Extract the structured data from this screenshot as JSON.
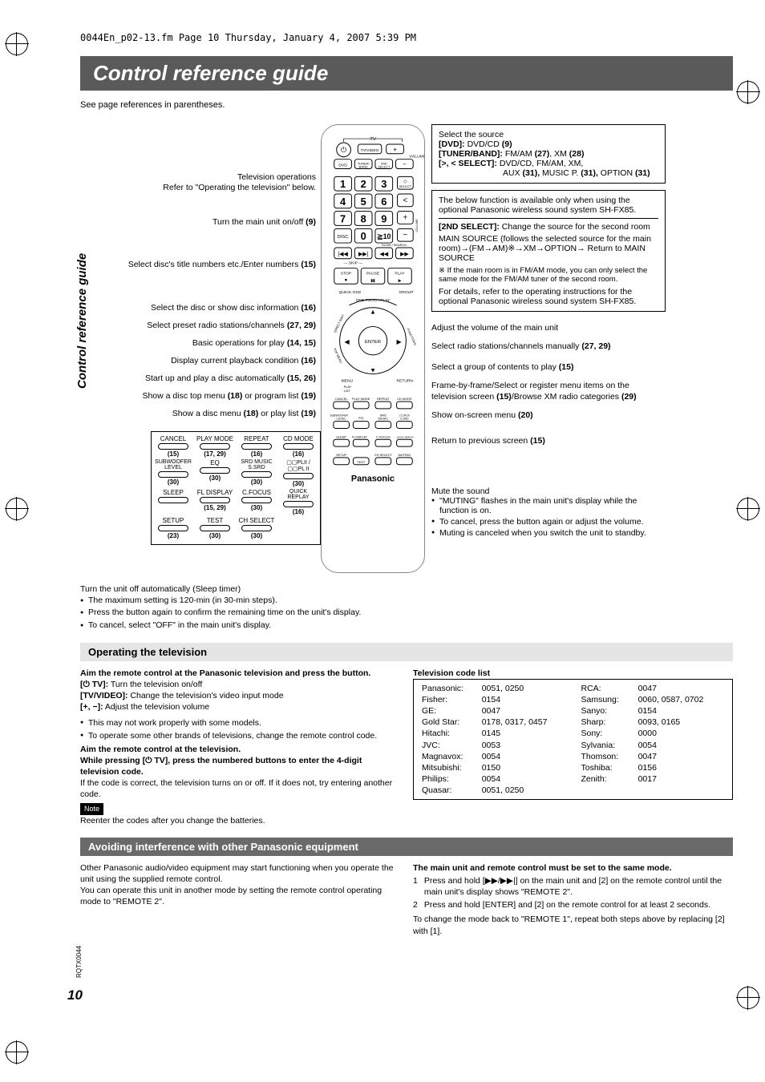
{
  "meta": {
    "header_line": "0044En_p02-13.fm  Page 10  Thursday, January 4, 2007  5:39 PM",
    "side_title": "Control reference guide",
    "doc_id": "RQTX0044",
    "page_number": "10"
  },
  "title": "Control reference guide",
  "intro": "See page references in parentheses.",
  "left_labels": [
    {
      "text": "Television operations\nRefer to \"Operating the television\" below."
    },
    {
      "text": "Turn the main unit on/off ",
      "ref": "(9)"
    },
    {
      "text": "Select disc's title numbers etc./Enter numbers ",
      "ref": "(15)"
    },
    {
      "text": "Select the disc or show disc information ",
      "ref": "(16)"
    },
    {
      "text": "Select preset radio stations/channels ",
      "ref": "(27, 29)"
    },
    {
      "text": "Basic operations for play ",
      "ref": "(14, 15)"
    },
    {
      "text": "Display current playback condition ",
      "ref": "(16)"
    },
    {
      "text": "Start up and play a disc automatically ",
      "ref": "(15, 26)"
    },
    {
      "text": "Show a disc top menu ",
      "ref": "(18)",
      "text2": " or program list ",
      "ref2": "(19)"
    },
    {
      "text": "Show a disc menu ",
      "ref": "(18)",
      "text2": " or play list ",
      "ref2": "(19)"
    }
  ],
  "button_grid": [
    [
      {
        "l": "CANCEL",
        "r": "(15)"
      },
      {
        "l": "PLAY MODE",
        "r": "(17, 29)"
      },
      {
        "l": "REPEAT",
        "r": "(16)"
      },
      {
        "l": "CD MODE",
        "r": "(16)"
      }
    ],
    [
      {
        "l": "SUBWOOFER LEVEL",
        "r": "(30)"
      },
      {
        "l": "EQ",
        "r": "(30)"
      },
      {
        "l": "SRD MUSIC S.SRD",
        "r": "(30)"
      },
      {
        "l": "▢▢PLII / ▢▢PL II",
        "r": "(30)"
      }
    ],
    [
      {
        "l": "SLEEP",
        "r": ""
      },
      {
        "l": "FL DISPLAY",
        "r": "(15, 29)"
      },
      {
        "l": "C.FOCUS",
        "r": "(30)"
      },
      {
        "l": "QUICK REPLAY",
        "r": "(16)"
      }
    ],
    [
      {
        "l": "SETUP",
        "r": "(23)"
      },
      {
        "l": "TEST",
        "r": "(30)"
      },
      {
        "l": "CH SELECT",
        "r": "(30)"
      },
      {
        "l": "",
        "r": ""
      }
    ]
  ],
  "sleep_block": {
    "heading": "Turn the unit off automatically (Sleep timer)",
    "bullets": [
      "The maximum setting is 120-min (in 30-min steps).",
      "Press the button again to confirm the remaining time on the unit's display.",
      "To cancel, select \"OFF\" in the main unit's display."
    ]
  },
  "right_boxes": {
    "source": {
      "line1": "Select the source",
      "dvd_label": "[DVD]:",
      "dvd_val": " DVD/CD ",
      "dvd_ref": "(9)",
      "tuner_label": "[TUNER/BAND]:",
      "tuner_val": " FM/AM ",
      "tuner_ref1": "(27)",
      "tuner_xm": ", XM ",
      "tuner_ref2": "(28)",
      "select_label": "[>, < SELECT]:",
      "select_val": " DVD/CD, FM/AM, XM,",
      "select_cont": "AUX ",
      "aux_ref": "(31),",
      "mp": " MUSIC P. ",
      "mp_ref": "(31),",
      "opt": " OPTION ",
      "opt_ref": "(31)"
    },
    "second": {
      "intro": "The below function is available only when using the optional Panasonic wireless sound system SH-FX85.",
      "sec_label": "[2ND SELECT]:",
      "sec_val": "Change the source for the second room",
      "seq": "MAIN SOURCE (follows the selected source for the main room)→(FM→AM)※→XM→OPTION→ Return to MAIN SOURCE",
      "note": "※ If the main room is in FM/AM mode, you can only select the same mode for the FM/AM tuner of the second room.",
      "details": "For details, refer to the operating instructions for the optional Panasonic wireless sound system SH-FX85."
    }
  },
  "right_labels": [
    {
      "text": "Adjust the volume of the main unit"
    },
    {
      "text": "Select radio stations/channels manually ",
      "ref": "(27, 29)"
    },
    {
      "text": "Select a group of contents to play ",
      "ref": "(15)"
    },
    {
      "text": "Frame-by-frame/Select or register menu items on the television screen ",
      "ref": "(15)",
      "text2": "/Browse XM radio categories ",
      "ref2": "(29)"
    },
    {
      "text": "Show on-screen menu ",
      "ref": "(20)"
    },
    {
      "text": "Return to previous screen ",
      "ref": "(15)"
    }
  ],
  "mute": {
    "heading": "Mute the sound",
    "bullets": [
      "\"MUTING\" flashes in the main unit's display while the function is on.",
      "To cancel, press the button again or adjust the volume.",
      "Muting is canceled when you switch the unit to standby."
    ]
  },
  "sections": {
    "tv_heading": "Operating the television",
    "interference_heading": "Avoiding interference with other Panasonic equipment"
  },
  "tv_section": {
    "l1": "Aim the remote control at the Panasonic television and press the button.",
    "l2a": "[⏻ TV]:",
    "l2b": " Turn the television on/off",
    "l3a": "[TV/VIDEO]:",
    "l3b": " Change the television's video input mode",
    "l4a": "[+, −]:",
    "l4b": " Adjust the television volume",
    "bullets": [
      "This may not work properly with some models.",
      "To operate some other brands of televisions, change the remote control code."
    ],
    "l5": "Aim the remote control at the television.",
    "l6": "While pressing [⏻ TV], press the numbered buttons to enter the 4-digit television code.",
    "l7": "If the code is correct, the television turns on or off. If it does not, try entering another code.",
    "note_label": "Note",
    "note_text": "Reenter the codes after you change the batteries.",
    "code_list_heading": "Television code list",
    "codes_left": [
      [
        "Panasonic:",
        "0051, 0250"
      ],
      [
        "Fisher:",
        "0154"
      ],
      [
        "GE:",
        "0047"
      ],
      [
        "Gold Star:",
        "0178, 0317, 0457"
      ],
      [
        "Hitachi:",
        "0145"
      ],
      [
        "JVC:",
        "0053"
      ],
      [
        "Magnavox:",
        "0054"
      ],
      [
        "Mitsubishi:",
        "0150"
      ],
      [
        "Philips:",
        "0054"
      ],
      [
        "Quasar:",
        "0051, 0250"
      ]
    ],
    "codes_right": [
      [
        "RCA:",
        "0047"
      ],
      [
        "Samsung:",
        "0060, 0587, 0702"
      ],
      [
        "Sanyo:",
        "0154"
      ],
      [
        "Sharp:",
        "0093, 0165"
      ],
      [
        "Sony:",
        "0000"
      ],
      [
        "Sylvania:",
        "0054"
      ],
      [
        "Thomson:",
        "0047"
      ],
      [
        "Toshiba:",
        "0156"
      ],
      [
        "Zenith:",
        "0017"
      ]
    ]
  },
  "interference": {
    "left1": "Other Panasonic audio/video equipment may start functioning when you operate the unit using the supplied remote control.",
    "left2": "You can operate this unit in another mode by setting the remote control operating mode to \"REMOTE 2\".",
    "right_heading": "The main unit and remote control must be set to the same mode.",
    "steps": [
      "Press and hold [▶▶/▶▶|] on the main unit and [2] on the remote control until the main unit's display shows \"REMOTE 2\".",
      "Press and hold [ENTER] and [2] on the remote control for at least 2 seconds."
    ],
    "footer": "To change the mode back to \"REMOTE 1\", repeat both steps above by replacing [2] with [1]."
  },
  "remote": {
    "brand": "Panasonic",
    "row1": [
      "⏻",
      "TV/VIDEO",
      "+"
    ],
    "row1cap": [
      "TV",
      "",
      "VOLUME"
    ],
    "row2": [
      "DVD",
      "TUNER/BAND",
      "2ND SELECT",
      "−"
    ],
    "numpad": [
      [
        "1",
        "2",
        "3"
      ],
      [
        "4",
        "5",
        "6"
      ],
      [
        "7",
        "8",
        "9"
      ],
      [
        "DISC",
        "0",
        "≧10"
      ]
    ],
    "side_btns": [
      "◇SELECT",
      "<",
      "+",
      "−"
    ],
    "side_cap": "VOLUME",
    "skip": [
      "|◀◀",
      "▶▶|",
      "◀◀",
      "▶▶"
    ],
    "skip_cap": [
      "— SKIP —",
      "SLOW / SEARCH"
    ],
    "transport": [
      "STOP ■",
      "PAUSE ▮▮",
      "PLAY ▶"
    ],
    "quick": [
      "QUICK OSD",
      "GROUP"
    ],
    "arc": "ONE TOUCH PLAY",
    "arc_left": "DIRECT NAVI TOP MENU",
    "arc_right": "FUNCTIONS",
    "center": "ENTER",
    "arrows": [
      "◀",
      "▲",
      "▶",
      "▼"
    ],
    "under": [
      "MENU PLAY LIST",
      "RETURN"
    ],
    "grid_caps": [
      [
        "CANCEL",
        "PLAY MODE",
        "REPEAT",
        "CD MODE"
      ],
      [
        "SUBWOOFER LEVEL",
        "EQ",
        "SRD MUSIC",
        "▢▢PLII/S.SRD"
      ],
      [
        "SLEEP",
        "FL DISPLAY",
        "C.FOCUS",
        "QUICK REPLAY"
      ],
      [
        "SETUP",
        "TEST",
        "CH SELECT",
        "MUTING"
      ]
    ]
  },
  "colors": {
    "title_bg": "#5a5a5a",
    "section_bg": "#e5e5e5",
    "section_dark_bg": "#6a6a6a",
    "text": "#000000"
  }
}
